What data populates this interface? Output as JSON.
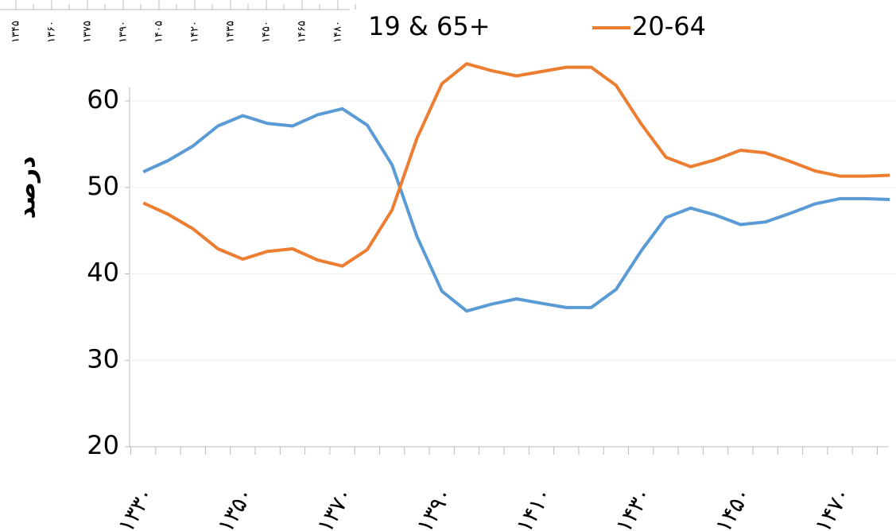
{
  "chart_data": {
    "type": "line",
    "y_label": "درصد",
    "categories": [
      "۱۳۳۰",
      null,
      null,
      null,
      "۱۳۵۰",
      null,
      null,
      null,
      "۱۳۷۰",
      null,
      null,
      null,
      "۱۳۹۰",
      null,
      null,
      null,
      "۱۴۱۰",
      null,
      null,
      null,
      "۱۴۳۰",
      null,
      null,
      null,
      "۱۴۵۰",
      null,
      null,
      null,
      "۱۴۷۰",
      null,
      null
    ],
    "series": [
      {
        "name": "19 & 65+",
        "color": "#5b9bd5",
        "values": [
          51.8,
          53.1,
          54.8,
          57.1,
          58.3,
          57.4,
          57.1,
          58.4,
          59.1,
          57.2,
          52.6,
          44.3,
          38.0,
          35.7,
          36.5,
          37.1,
          36.6,
          36.1,
          36.1,
          38.2,
          42.6,
          46.5,
          47.6,
          46.8,
          45.7,
          46.0,
          47.0,
          48.1,
          48.7,
          48.7,
          48.6
        ]
      },
      {
        "name": "20-64",
        "color": "#ed7d31",
        "values": [
          48.2,
          46.9,
          45.2,
          42.9,
          41.7,
          42.6,
          42.9,
          41.6,
          40.9,
          42.8,
          47.4,
          55.7,
          62.0,
          64.3,
          63.5,
          62.9,
          63.4,
          63.9,
          63.9,
          61.8,
          57.4,
          53.5,
          52.4,
          53.2,
          54.3,
          54.0,
          53.0,
          51.9,
          51.3,
          51.3,
          51.4
        ]
      }
    ],
    "ylim": [
      20,
      60
    ],
    "yticks": [
      20,
      30,
      40,
      50,
      60
    ],
    "grid": true
  },
  "overlay_axis_labels": [
    "۱۳۴۵",
    "۱۳۶۰",
    "۱۳۷۵",
    "۱۳۹۰",
    "۱۴۰۵",
    "۱۴۲۰",
    "۱۴۳۵",
    "۱۴۵۰",
    "۱۴۶۵",
    "۱۴۸۰"
  ]
}
